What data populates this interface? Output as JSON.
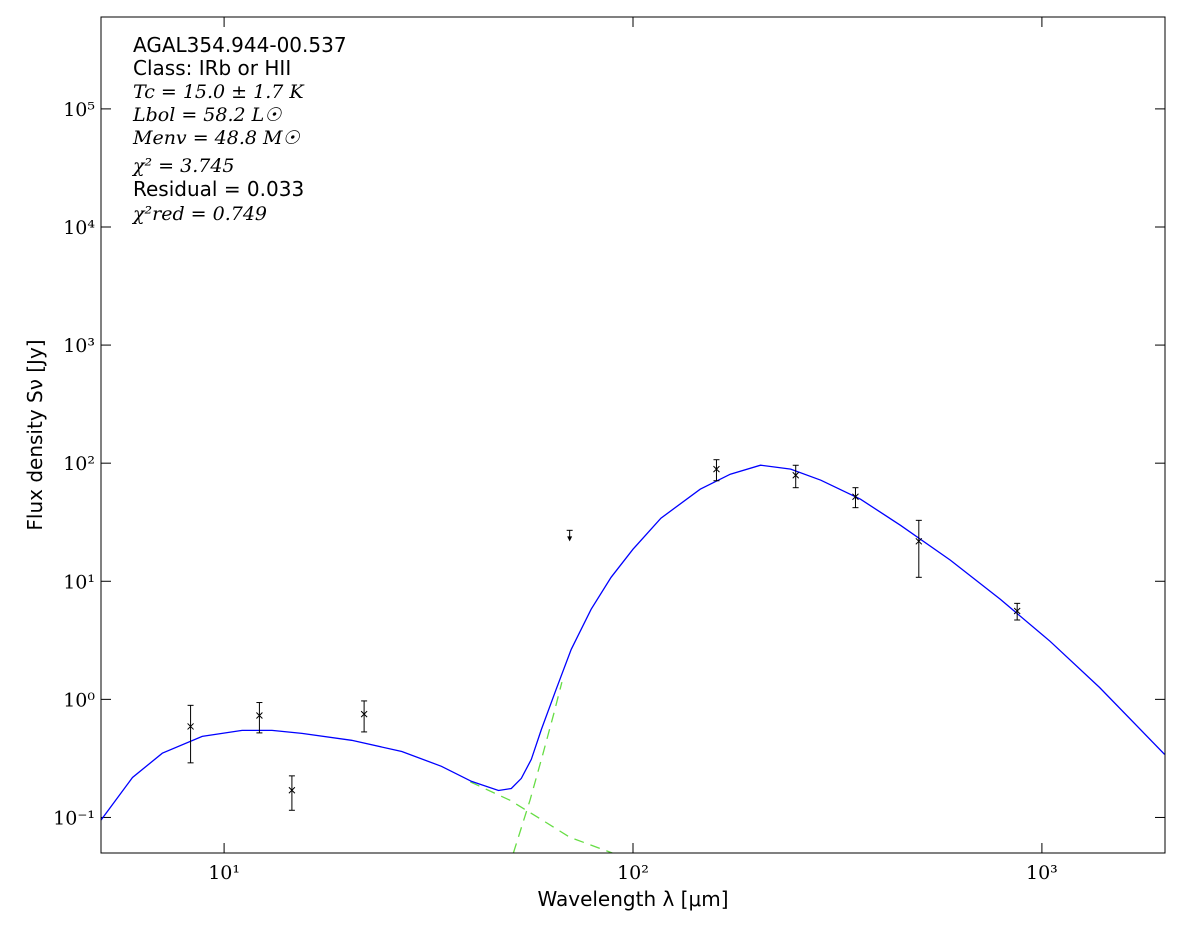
{
  "chart_data": {
    "type": "sed",
    "xlabel": "Wavelength λ [μm]",
    "ylabel": "Flux density Sν [Jy]",
    "xscale": "log",
    "yscale": "log",
    "xlim": [
      5,
      2000
    ],
    "ylim": [
      0.05,
      600000
    ],
    "xticks": [
      {
        "value": 10,
        "label": "10¹"
      },
      {
        "value": 100,
        "label": "10²"
      },
      {
        "value": 1000,
        "label": "10³"
      }
    ],
    "yticks": [
      {
        "value": 0.1,
        "label": "10⁻¹"
      },
      {
        "value": 1,
        "label": "10⁰"
      },
      {
        "value": 10,
        "label": "10¹"
      },
      {
        "value": 100,
        "label": "10²"
      },
      {
        "value": 1000,
        "label": "10³"
      },
      {
        "value": 10000,
        "label": "10⁴"
      },
      {
        "value": 100000,
        "label": "10⁵"
      }
    ],
    "annotations": [
      "AGAL354.944-00.537",
      "Class: IRb or HII",
      "Tc = 15.0 ± 1.7 K",
      "Lbol = 58.2 L☉",
      "Menv = 48.8 M☉",
      "χ² = 3.745",
      "Residual = 0.033",
      "χ²red = 0.749"
    ],
    "observations": {
      "color": "#000000",
      "x": [
        8.28,
        12.2,
        14.65,
        22,
        70,
        160,
        250,
        350,
        500,
        870
      ],
      "values": [
        0.59,
        0.73,
        0.17,
        0.75,
        27,
        89,
        79,
        52,
        21.8,
        5.6
      ],
      "errors": [
        0.3,
        0.21,
        0.055,
        0.22,
        null,
        18,
        17,
        10,
        11,
        0.9
      ],
      "upper_limits": [
        false,
        false,
        false,
        false,
        true,
        false,
        false,
        false,
        false,
        false
      ]
    },
    "model": {
      "color": "#0000ff",
      "x": [
        5,
        5.97,
        7.06,
        8.84,
        11.07,
        13.1,
        15.5,
        20.5,
        27.2,
        34.0,
        40.3,
        46.9,
        50.4,
        53.3,
        56.4,
        59.7,
        64.9,
        70.6,
        79.0,
        88.4,
        100,
        117,
        146,
        173,
        205,
        243,
        288,
        360,
        451,
        597,
        791,
        1047,
        1384,
        1995
      ],
      "values": [
        0.095,
        0.218,
        0.35,
        0.486,
        0.546,
        0.546,
        0.515,
        0.45,
        0.362,
        0.271,
        0.202,
        0.169,
        0.176,
        0.214,
        0.31,
        0.557,
        1.22,
        2.65,
        5.79,
        10.8,
        18.7,
        34.2,
        60.2,
        80.7,
        96.2,
        89,
        71.8,
        49.5,
        29.8,
        15.1,
        7.04,
        3.1,
        1.26,
        0.342
      ]
    },
    "components": [
      {
        "color": "#66dd44",
        "x": [
          40,
          50,
          60,
          70,
          89
        ],
        "values": [
          0.2,
          0.14,
          0.095,
          0.068,
          0.05
        ]
      },
      {
        "color": "#66dd44",
        "x": [
          51,
          56,
          60,
          64,
          67
        ],
        "values": [
          0.05,
          0.14,
          0.33,
          0.75,
          1.4
        ]
      }
    ]
  }
}
